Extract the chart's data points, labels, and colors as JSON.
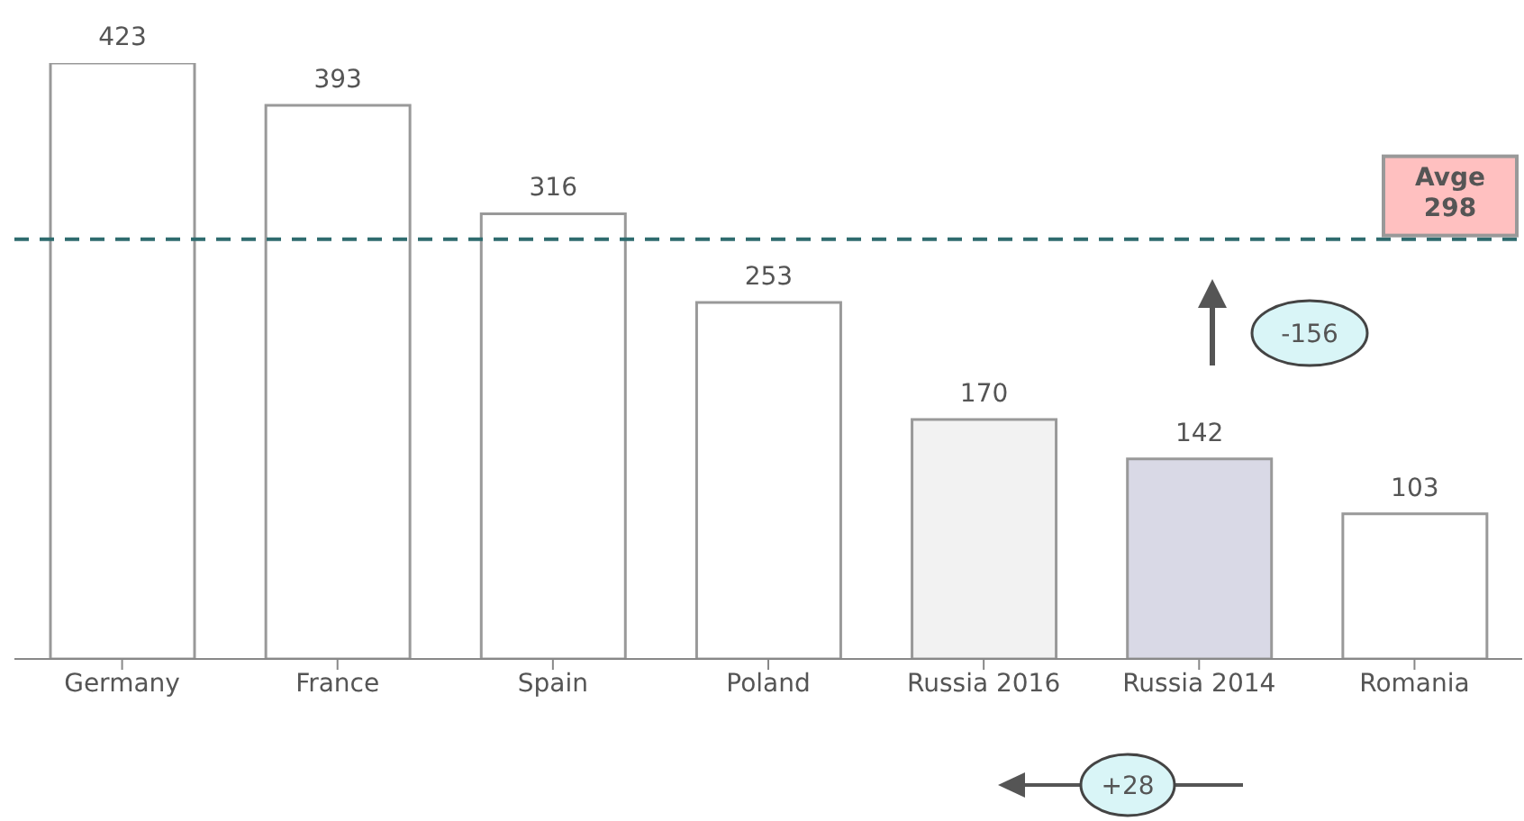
{
  "chart_data": {
    "type": "bar",
    "categories": [
      "Germany",
      "France",
      "Spain",
      "Poland",
      "Russia 2016",
      "Russia 2014",
      "Romania"
    ],
    "values": [
      423,
      393,
      316,
      253,
      170,
      142,
      103
    ],
    "colors": [
      "#ffffff",
      "#ffffff",
      "#ffffff",
      "#ffffff",
      "#f2f2f2",
      "#d9d9e6",
      "#ffffff"
    ],
    "data_labels": true,
    "ref_lines": [
      {
        "axis": "y",
        "value": 298,
        "label": "Avge 298",
        "color": "#2e6b6e",
        "line_style": "dashed"
      }
    ],
    "annotations": [
      "-156",
      "+28"
    ]
  }
}
